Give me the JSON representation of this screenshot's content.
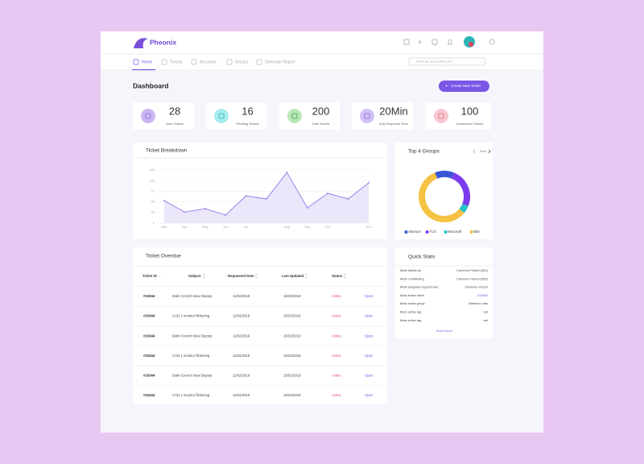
{
  "header": {
    "logo": "Pheonix"
  },
  "nav": {
    "items": [
      "Home",
      "Tickets",
      "Accounts",
      "Groups",
      "Generate Report"
    ],
    "search_placeholder": "What are you looking for?"
  },
  "page": {
    "title": "Dashboard",
    "button": "Create New Ticket"
  },
  "stats": [
    {
      "value": "28",
      "label": "New Tickets"
    },
    {
      "value": "16",
      "label": "Pending Tickets"
    },
    {
      "value": "200",
      "label": "Total Tickets"
    },
    {
      "value": "20Min",
      "label": "Avg Response Time"
    },
    {
      "value": "100",
      "label": "Unresolved Tickets"
    }
  ],
  "line_chart": {
    "type": "line",
    "title": "Ticket Breakdown",
    "categories": [
      "Mar",
      "Apr",
      "May",
      "Jun",
      "Jul",
      null,
      "Aug",
      "Sep",
      "Oct",
      null,
      "Nov"
    ],
    "values": [
      53,
      26,
      34,
      19,
      64,
      57,
      119,
      36,
      70,
      57,
      95
    ],
    "ylim": [
      0,
      125
    ],
    "yticks": [
      0,
      25,
      50,
      75,
      100,
      125
    ],
    "color": "#9b84e8",
    "grid": true
  },
  "donut_chart": {
    "type": "pie",
    "title": "Top 4 Groups",
    "nav": "Next",
    "categories": [
      "Atterium",
      "TCS",
      "Microsoft",
      "IBM"
    ],
    "values": [
      12,
      25,
      5,
      58
    ],
    "colors": [
      "#3b55d9",
      "#7c3aed",
      "#22c1c3",
      "#f5c242"
    ]
  },
  "overdue": {
    "title": "Ticket Overdue",
    "columns": [
      "Ticket ID",
      "Subject",
      "Requested Date",
      "Last Updated",
      "Status"
    ],
    "rows": [
      [
        "#10344",
        "Dalin Crench New Deputy",
        "11/02/2019",
        "15/02/2019",
        "Active",
        "Open"
      ],
      [
        "#10344",
        "CAD 1 monitor flickering",
        "11/02/2019",
        "15/02/2019",
        "Active",
        "Open"
      ],
      [
        "#10344",
        "Dalin Crench New Deputy",
        "11/02/2019",
        "15/02/2019",
        "Active",
        "Open"
      ],
      [
        "#10344",
        "CAD 1 monitor flickering",
        "11/02/2019",
        "15/02/2019",
        "Active",
        "Open"
      ],
      [
        "#10344",
        "Dalin Crench New Deputy",
        "11/02/2019",
        "15/02/2019",
        "Active",
        "Open"
      ],
      [
        "#10344",
        "CAD 1 monitor flickering",
        "11/02/2019",
        "15/02/2019",
        "Active",
        "Open"
      ]
    ]
  },
  "quick_stats": {
    "title": "Quick Stats",
    "rows": [
      [
        "Most tickets by",
        "Cameron Flesch (532)"
      ],
      [
        "Most contributing",
        "Cameron Flesch (532)"
      ],
      [
        "Most assigned support user",
        "Cameron Flesch"
      ],
      [
        "Most active ticket",
        "#10582"
      ],
      [
        "Most active group",
        "Atterium Labs"
      ],
      [
        "Most active tag",
        ".net"
      ],
      [
        "Most active tag",
        ".net"
      ]
    ],
    "more": "Show more"
  }
}
